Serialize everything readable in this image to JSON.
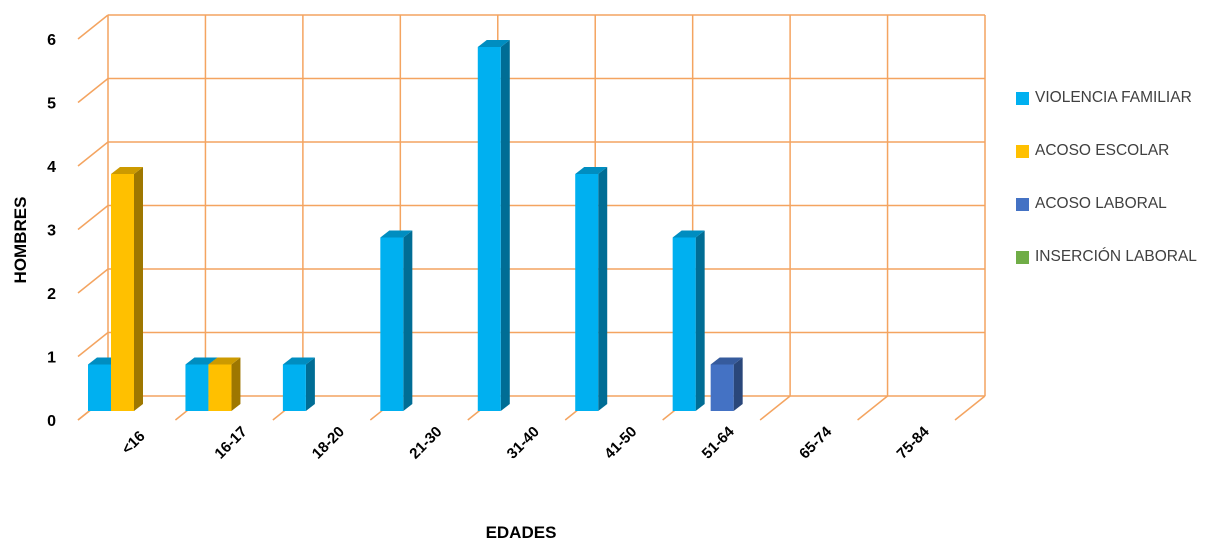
{
  "chart_data": {
    "type": "bar",
    "title": "",
    "xlabel": "EDADES",
    "ylabel": "HOMBRES",
    "ylim": [
      0,
      6
    ],
    "yticks": [
      "0",
      "1",
      "2",
      "3",
      "4",
      "5",
      "6"
    ],
    "categories": [
      "<16",
      "16-17",
      "18-20",
      "21-30",
      "31-40",
      "41-50",
      "51-64",
      "65-74",
      "75-84"
    ],
    "series": [
      {
        "name": "VIOLENCIA FAMILIAR",
        "color": "#00B0F0",
        "values": [
          1,
          1,
          1,
          3,
          6,
          4,
          3,
          0,
          0
        ]
      },
      {
        "name": "ACOSO ESCOLAR",
        "color": "#FFC000",
        "values": [
          4,
          1,
          0,
          0,
          0,
          0,
          0,
          0,
          0
        ]
      },
      {
        "name": "ACOSO LABORAL",
        "color": "#4472C4",
        "values": [
          0,
          0,
          0,
          0,
          0,
          0,
          1,
          0,
          0
        ]
      },
      {
        "name": "INSERCIÓN LABORAL",
        "color": "#70AD47",
        "values": [
          0,
          0,
          0,
          0,
          0,
          0,
          0,
          0,
          0
        ]
      }
    ],
    "grid": true,
    "gridColor": "#F4A460",
    "legend": "right"
  }
}
